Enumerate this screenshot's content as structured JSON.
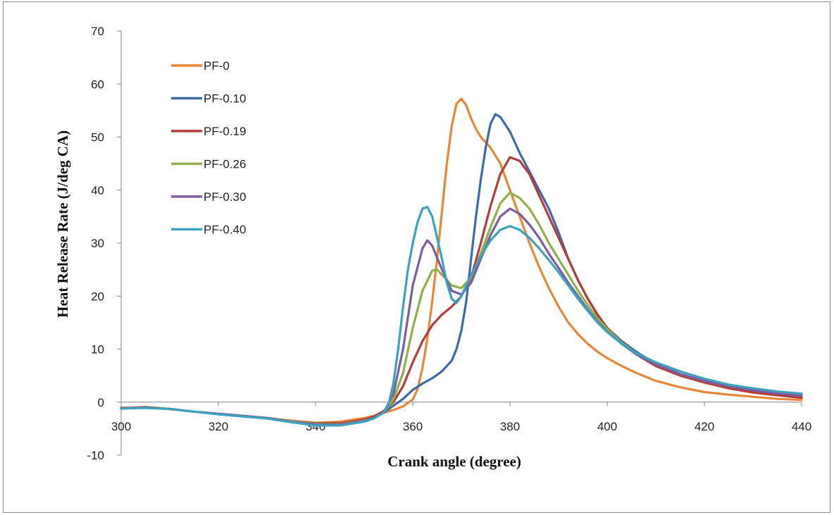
{
  "chart_data": {
    "type": "line",
    "title": "",
    "xlabel": "Crank angle (degree)",
    "ylabel": "Heat Release Rate (J/deg CA)",
    "xlim": [
      300,
      440
    ],
    "ylim": [
      -10,
      70
    ],
    "xticks": [
      "300",
      "320",
      "340",
      "360",
      "380",
      "400",
      "420",
      "440"
    ],
    "yticks": [
      "-10",
      "0",
      "10",
      "20",
      "30",
      "40",
      "50",
      "60",
      "70"
    ],
    "grid": false,
    "legend_position": "top-left",
    "series": [
      {
        "name": "PF-0",
        "color": "#E8873A",
        "points": [
          [
            300,
            -1.2
          ],
          [
            305,
            -0.9
          ],
          [
            310,
            -1.3
          ],
          [
            315,
            -1.8
          ],
          [
            320,
            -2.2
          ],
          [
            325,
            -2.6
          ],
          [
            330,
            -3.0
          ],
          [
            335,
            -3.5
          ],
          [
            340,
            -3.9
          ],
          [
            345,
            -3.7
          ],
          [
            350,
            -3.0
          ],
          [
            352,
            -2.6
          ],
          [
            354,
            -2.0
          ],
          [
            356,
            -1.5
          ],
          [
            358,
            -0.8
          ],
          [
            360,
            0.5
          ],
          [
            361,
            2.5
          ],
          [
            362,
            6.5
          ],
          [
            363,
            12
          ],
          [
            364,
            19
          ],
          [
            365,
            27
          ],
          [
            366,
            36
          ],
          [
            367,
            45
          ],
          [
            368,
            52
          ],
          [
            369,
            56.3
          ],
          [
            370,
            57.2
          ],
          [
            371,
            56
          ],
          [
            372,
            53.5
          ],
          [
            373,
            51.5
          ],
          [
            374,
            50
          ],
          [
            376,
            48
          ],
          [
            378,
            45
          ],
          [
            380,
            40
          ],
          [
            382,
            35
          ],
          [
            384,
            30
          ],
          [
            386,
            25.5
          ],
          [
            388,
            21.5
          ],
          [
            390,
            18
          ],
          [
            392,
            15
          ],
          [
            394,
            12.8
          ],
          [
            396,
            11
          ],
          [
            398,
            9.5
          ],
          [
            400,
            8.3
          ],
          [
            403,
            6.8
          ],
          [
            406,
            5.5
          ],
          [
            410,
            4.0
          ],
          [
            415,
            2.8
          ],
          [
            420,
            1.9
          ],
          [
            425,
            1.4
          ],
          [
            430,
            1.0
          ],
          [
            435,
            0.6
          ],
          [
            440,
            0.4
          ]
        ]
      },
      {
        "name": "PF-0.10",
        "color": "#3D6AA8",
        "points": [
          [
            300,
            -1.2
          ],
          [
            305,
            -1.0
          ],
          [
            310,
            -1.3
          ],
          [
            315,
            -1.8
          ],
          [
            320,
            -2.2
          ],
          [
            325,
            -2.6
          ],
          [
            330,
            -3.0
          ],
          [
            335,
            -3.6
          ],
          [
            340,
            -4.0
          ],
          [
            345,
            -4.0
          ],
          [
            350,
            -3.3
          ],
          [
            352,
            -2.8
          ],
          [
            354,
            -2.0
          ],
          [
            356,
            -0.7
          ],
          [
            358,
            0.6
          ],
          [
            360,
            2.3
          ],
          [
            362,
            3.5
          ],
          [
            364,
            4.5
          ],
          [
            366,
            5.8
          ],
          [
            368,
            7.8
          ],
          [
            369,
            10
          ],
          [
            370,
            13.5
          ],
          [
            371,
            19
          ],
          [
            372,
            27
          ],
          [
            373,
            35
          ],
          [
            374,
            42
          ],
          [
            375,
            48
          ],
          [
            376,
            52.5
          ],
          [
            377,
            54.3
          ],
          [
            378,
            53.8
          ],
          [
            380,
            51
          ],
          [
            382,
            47
          ],
          [
            384,
            43.5
          ],
          [
            386,
            40
          ],
          [
            388,
            36.5
          ],
          [
            390,
            32
          ],
          [
            392,
            27
          ],
          [
            394,
            23
          ],
          [
            396,
            19.5
          ],
          [
            398,
            16.5
          ],
          [
            400,
            14
          ],
          [
            403,
            11.5
          ],
          [
            406,
            9.5
          ],
          [
            410,
            7.2
          ],
          [
            415,
            5.3
          ],
          [
            420,
            3.9
          ],
          [
            425,
            2.9
          ],
          [
            430,
            2.1
          ],
          [
            435,
            1.5
          ],
          [
            440,
            0.9
          ]
        ]
      },
      {
        "name": "PF-0.19",
        "color": "#B23D3B",
        "points": [
          [
            300,
            -1.1
          ],
          [
            305,
            -1.0
          ],
          [
            310,
            -1.3
          ],
          [
            315,
            -1.8
          ],
          [
            320,
            -2.2
          ],
          [
            325,
            -2.6
          ],
          [
            330,
            -3.0
          ],
          [
            335,
            -3.6
          ],
          [
            340,
            -4.0
          ],
          [
            345,
            -4.0
          ],
          [
            350,
            -3.3
          ],
          [
            352,
            -2.7
          ],
          [
            354,
            -1.7
          ],
          [
            356,
            0
          ],
          [
            358,
            3
          ],
          [
            360,
            7.5
          ],
          [
            362,
            11.5
          ],
          [
            364,
            14.5
          ],
          [
            366,
            16.5
          ],
          [
            368,
            18
          ],
          [
            370,
            20
          ],
          [
            372,
            23.5
          ],
          [
            374,
            30
          ],
          [
            376,
            37
          ],
          [
            378,
            43
          ],
          [
            380,
            46.2
          ],
          [
            382,
            45.5
          ],
          [
            384,
            43
          ],
          [
            386,
            39
          ],
          [
            388,
            35
          ],
          [
            390,
            31
          ],
          [
            392,
            27
          ],
          [
            394,
            23
          ],
          [
            396,
            19.5
          ],
          [
            398,
            16.5
          ],
          [
            400,
            14
          ],
          [
            403,
            11
          ],
          [
            406,
            9
          ],
          [
            410,
            6.8
          ],
          [
            415,
            5
          ],
          [
            420,
            3.7
          ],
          [
            425,
            2.6
          ],
          [
            430,
            1.8
          ],
          [
            435,
            1.3
          ],
          [
            440,
            0.8
          ]
        ]
      },
      {
        "name": "PF-0.26",
        "color": "#8FB04A",
        "points": [
          [
            300,
            -1.2
          ],
          [
            305,
            -1.0
          ],
          [
            310,
            -1.3
          ],
          [
            315,
            -1.8
          ],
          [
            320,
            -2.2
          ],
          [
            325,
            -2.6
          ],
          [
            330,
            -3.0
          ],
          [
            335,
            -3.6
          ],
          [
            340,
            -4.1
          ],
          [
            345,
            -4.2
          ],
          [
            350,
            -3.5
          ],
          [
            352,
            -3.0
          ],
          [
            354,
            -2.0
          ],
          [
            356,
            0.5
          ],
          [
            358,
            5.5
          ],
          [
            360,
            14
          ],
          [
            362,
            21
          ],
          [
            364,
            24.8
          ],
          [
            365,
            25
          ],
          [
            366,
            24
          ],
          [
            368,
            22
          ],
          [
            370,
            21.5
          ],
          [
            372,
            23.5
          ],
          [
            374,
            28
          ],
          [
            376,
            33
          ],
          [
            378,
            37.5
          ],
          [
            380,
            39.5
          ],
          [
            382,
            38.5
          ],
          [
            384,
            36.5
          ],
          [
            386,
            33.5
          ],
          [
            388,
            30
          ],
          [
            390,
            27
          ],
          [
            392,
            24
          ],
          [
            394,
            21
          ],
          [
            396,
            18.3
          ],
          [
            398,
            15.8
          ],
          [
            400,
            13.8
          ],
          [
            403,
            11.2
          ],
          [
            406,
            9.2
          ],
          [
            410,
            7.2
          ],
          [
            415,
            5.3
          ],
          [
            420,
            4
          ],
          [
            425,
            3
          ],
          [
            430,
            2.3
          ],
          [
            435,
            1.8
          ],
          [
            440,
            1.4
          ]
        ]
      },
      {
        "name": "PF-0.30",
        "color": "#7E5C9E",
        "points": [
          [
            300,
            -1.2
          ],
          [
            305,
            -1.0
          ],
          [
            310,
            -1.3
          ],
          [
            315,
            -1.8
          ],
          [
            320,
            -2.2
          ],
          [
            325,
            -2.6
          ],
          [
            330,
            -3.0
          ],
          [
            335,
            -3.7
          ],
          [
            340,
            -4.2
          ],
          [
            345,
            -4.3
          ],
          [
            350,
            -3.6
          ],
          [
            352,
            -3.0
          ],
          [
            354,
            -2.0
          ],
          [
            356,
            1.5
          ],
          [
            358,
            10
          ],
          [
            360,
            22
          ],
          [
            362,
            29
          ],
          [
            363,
            30.5
          ],
          [
            364,
            29.5
          ],
          [
            366,
            25
          ],
          [
            368,
            21
          ],
          [
            370,
            20.3
          ],
          [
            372,
            22.5
          ],
          [
            374,
            27
          ],
          [
            376,
            31.5
          ],
          [
            378,
            35
          ],
          [
            380,
            36.5
          ],
          [
            382,
            35.5
          ],
          [
            384,
            33.5
          ],
          [
            386,
            31
          ],
          [
            388,
            28
          ],
          [
            390,
            25.3
          ],
          [
            392,
            22.5
          ],
          [
            394,
            20
          ],
          [
            396,
            17.5
          ],
          [
            398,
            15.2
          ],
          [
            400,
            13.3
          ],
          [
            403,
            11
          ],
          [
            406,
            9
          ],
          [
            410,
            7.1
          ],
          [
            415,
            5.3
          ],
          [
            420,
            4
          ],
          [
            425,
            3
          ],
          [
            430,
            2.2
          ],
          [
            435,
            1.7
          ],
          [
            440,
            1.2
          ]
        ]
      },
      {
        "name": "PF-0.40",
        "color": "#3CA2BE",
        "points": [
          [
            300,
            -1.2
          ],
          [
            305,
            -1.1
          ],
          [
            310,
            -1.3
          ],
          [
            315,
            -1.8
          ],
          [
            320,
            -2.3
          ],
          [
            325,
            -2.7
          ],
          [
            330,
            -3.1
          ],
          [
            335,
            -3.8
          ],
          [
            340,
            -4.4
          ],
          [
            345,
            -4.4
          ],
          [
            350,
            -3.7
          ],
          [
            352,
            -3.1
          ],
          [
            354,
            -2.0
          ],
          [
            355,
            -0.5
          ],
          [
            356,
            3.5
          ],
          [
            357,
            10
          ],
          [
            358,
            18
          ],
          [
            359,
            25
          ],
          [
            360,
            30
          ],
          [
            361,
            34
          ],
          [
            362,
            36.5
          ],
          [
            363,
            36.8
          ],
          [
            364,
            35
          ],
          [
            365,
            31
          ],
          [
            366,
            27
          ],
          [
            367,
            22.5
          ],
          [
            368,
            19.5
          ],
          [
            369,
            18.7
          ],
          [
            370,
            20
          ],
          [
            372,
            24
          ],
          [
            374,
            27.5
          ],
          [
            376,
            30.5
          ],
          [
            378,
            32.5
          ],
          [
            380,
            33.2
          ],
          [
            382,
            32.5
          ],
          [
            384,
            31
          ],
          [
            386,
            29
          ],
          [
            388,
            26.8
          ],
          [
            390,
            24.5
          ],
          [
            392,
            22
          ],
          [
            394,
            19.5
          ],
          [
            396,
            17.2
          ],
          [
            398,
            15
          ],
          [
            400,
            13.2
          ],
          [
            403,
            11
          ],
          [
            406,
            9.2
          ],
          [
            410,
            7.5
          ],
          [
            415,
            5.8
          ],
          [
            420,
            4.4
          ],
          [
            425,
            3.3
          ],
          [
            430,
            2.6
          ],
          [
            435,
            2.0
          ],
          [
            440,
            1.6
          ]
        ]
      }
    ]
  }
}
